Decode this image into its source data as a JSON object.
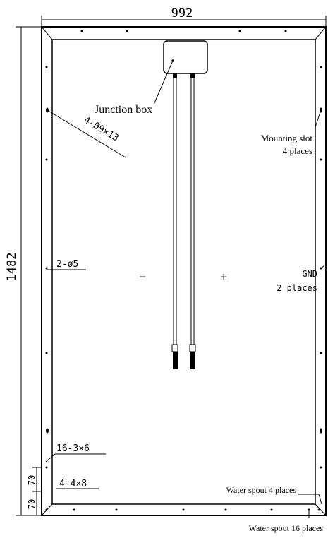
{
  "dimensions": {
    "width_label": "992",
    "height_label": "1482",
    "spacing_a": "70",
    "spacing_b": "70"
  },
  "labels": {
    "junction_box": "Junction box",
    "mounting_slot": "Mounting slot",
    "mounting_slot_places": "4 places",
    "mounting_hole_spec": "4-Ø9×13",
    "hole_spec_2": "2-ø5",
    "gnd": "GND",
    "gnd_places": "2 places",
    "spec_16": "16-3×6",
    "spec_4": "4-4×8",
    "water_spout_4": "Water spout 4 places",
    "water_spout_16": "Water spout 16 places",
    "minus": "−",
    "plus": "+"
  }
}
